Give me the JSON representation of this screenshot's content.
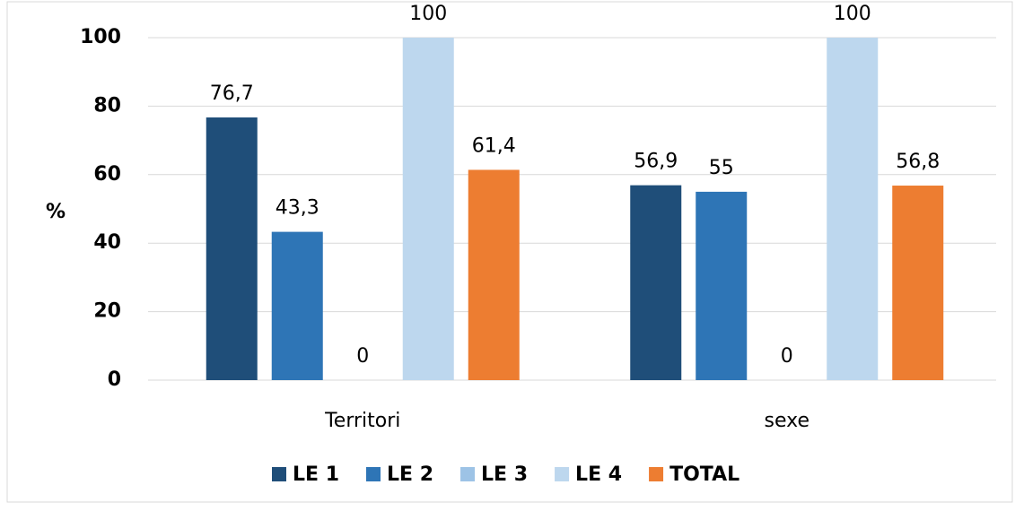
{
  "chart_data": {
    "type": "bar",
    "ylabel": "%",
    "categories": [
      "Territori",
      "sexe"
    ],
    "series": [
      {
        "name": "LE 1",
        "color": "#1f4e79",
        "values": [
          76.7,
          56.9
        ],
        "value_labels": [
          "76,7",
          "56,9"
        ]
      },
      {
        "name": "LE 2",
        "color": "#2e75b6",
        "values": [
          43.3,
          55
        ],
        "value_labels": [
          "43,3",
          "55"
        ]
      },
      {
        "name": "LE 3",
        "color": "#9dc3e6",
        "values": [
          0,
          0
        ]
      },
      {
        "name": "LE 4",
        "color": "#bdd7ee",
        "values": [
          100,
          100
        ]
      },
      {
        "name": "TOTAL",
        "color": "#ed7d31",
        "values": [
          61.4,
          56.8
        ],
        "value_labels": [
          "61,4",
          "56,8"
        ]
      }
    ],
    "ylim": [
      0,
      100
    ],
    "yticks": [
      0,
      20,
      40,
      60,
      80,
      100
    ],
    "grid": true,
    "legend": "bottom"
  }
}
